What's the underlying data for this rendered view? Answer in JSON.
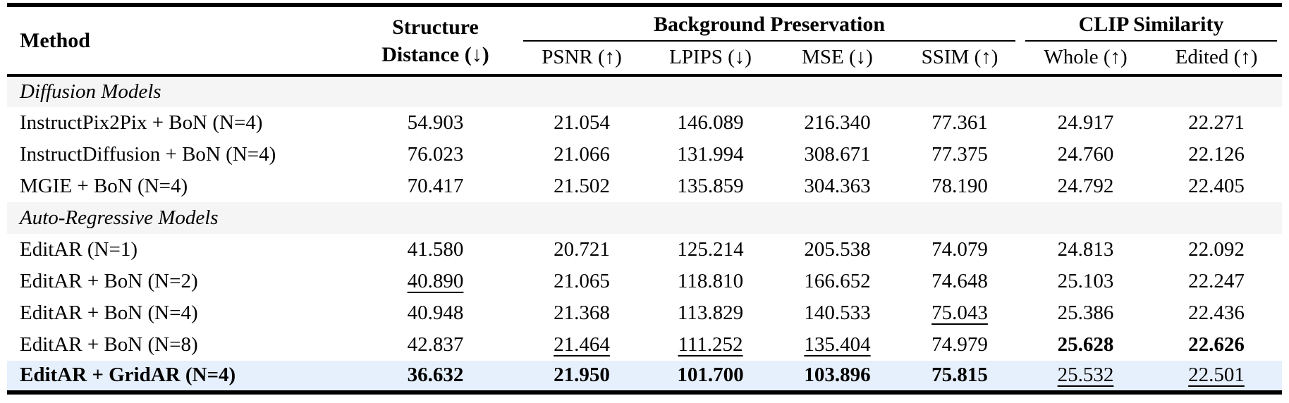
{
  "table": {
    "header": {
      "method_label": "Method",
      "structure_line1": "Structure",
      "structure_line2": "Distance (↓)",
      "group_background": "Background Preservation",
      "group_clip": "CLIP Similarity",
      "sub": {
        "psnr": "PSNR (↑)",
        "lpips": "LPIPS (↓)",
        "mse": "MSE (↓)",
        "ssim": "SSIM (↑)",
        "whole": "Whole (↑)",
        "edited": "Edited (↑)"
      }
    },
    "rows": {
      "sec1": {
        "label": "Diffusion Models"
      },
      "r1": {
        "method": "InstructPix2Pix + BoN (N=4)",
        "v": [
          "54.903",
          "21.054",
          "146.089",
          "216.340",
          "77.361",
          "24.917",
          "22.271"
        ]
      },
      "r2": {
        "method": "InstructDiffusion + BoN (N=4)",
        "v": [
          "76.023",
          "21.066",
          "131.994",
          "308.671",
          "77.375",
          "24.760",
          "22.126"
        ]
      },
      "r3": {
        "method": "MGIE + BoN (N=4)",
        "v": [
          "70.417",
          "21.502",
          "135.859",
          "304.363",
          "78.190",
          "24.792",
          "22.405"
        ]
      },
      "sec2": {
        "label": "Auto-Regressive Models"
      },
      "r4": {
        "method": "EditAR (N=1)",
        "v": [
          "41.580",
          "20.721",
          "125.214",
          "205.538",
          "74.079",
          "24.813",
          "22.092"
        ]
      },
      "r5": {
        "method": "EditAR + BoN (N=2)",
        "v": [
          "40.890",
          "21.065",
          "118.810",
          "166.652",
          "74.648",
          "25.103",
          "22.247"
        ]
      },
      "r6": {
        "method": "EditAR + BoN (N=4)",
        "v": [
          "40.948",
          "21.368",
          "113.829",
          "140.533",
          "75.043",
          "25.386",
          "22.436"
        ]
      },
      "r7": {
        "method": "EditAR + BoN (N=8)",
        "v": [
          "42.837",
          "21.464",
          "111.252",
          "135.404",
          "74.979",
          "25.628",
          "22.626"
        ]
      },
      "r8": {
        "method": "EditAR + GridAR (N=4)",
        "v": [
          "36.632",
          "21.950",
          "101.700",
          "103.896",
          "75.815",
          "25.532",
          "22.501"
        ]
      }
    },
    "colors": {
      "section_band": "#f5f5f5",
      "highlight_row": "#e6effc",
      "rule": "#000000"
    }
  }
}
